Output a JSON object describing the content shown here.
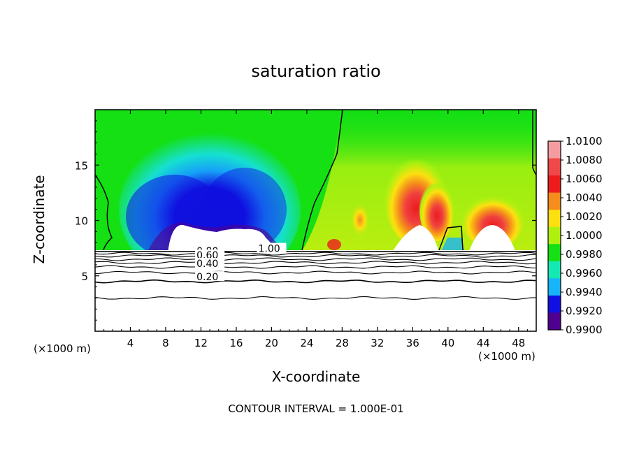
{
  "chart_data": {
    "type": "heatmap",
    "title": "saturation ratio",
    "xlabel": "X-coordinate",
    "ylabel": "Z-coordinate",
    "x_unit_label": "(×1000 m)",
    "footer": "CONTOUR INTERVAL = 1.000E-01",
    "xlim": [
      0,
      50
    ],
    "ylim": [
      0,
      20
    ],
    "x_ticks": [
      4,
      8,
      12,
      16,
      20,
      24,
      28,
      32,
      36,
      40,
      44,
      48
    ],
    "y_ticks": [
      5,
      10,
      15
    ],
    "colorbar": {
      "levels": [
        "1.0100",
        "1.0080",
        "1.0060",
        "1.0040",
        "1.0020",
        "1.0000",
        "0.9980",
        "0.9960",
        "0.9940",
        "0.9920",
        "0.9900"
      ],
      "colors": [
        "#f49ca0",
        "#f04848",
        "#ec1c1c",
        "#f58c1c",
        "#fce010",
        "#b0f010",
        "#14e014",
        "#16e8b4",
        "#16b4f8",
        "#1010e0",
        "#500090"
      ]
    },
    "contour_labels": [
      "0.80",
      "0.60",
      "0.40",
      "0.20",
      "1.00"
    ],
    "cloud_top_level": 7.2,
    "subsaturated_layer_contours_z": [
      3.0,
      4.5,
      5.3,
      5.8,
      6.2,
      6.5,
      6.8,
      7.0
    ]
  }
}
